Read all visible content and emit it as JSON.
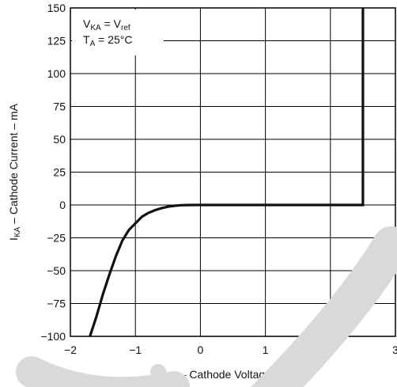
{
  "chart_data": {
    "type": "line",
    "title": "",
    "xlabel": {
      "main": "V",
      "sub": "KA",
      "rest": " – Cathode Voltage – V"
    },
    "ylabel": {
      "main": "I",
      "sub": "KA",
      "rest": " – Cathode Current – mA"
    },
    "xlim": [
      -2,
      3
    ],
    "ylim": [
      -100,
      150
    ],
    "x_ticks": [
      -2,
      -1,
      0,
      1,
      2,
      3
    ],
    "y_ticks": [
      150,
      125,
      100,
      75,
      50,
      25,
      0,
      -25,
      -50,
      -75,
      -100
    ],
    "grid": true,
    "annotations": [
      {
        "parts": [
          [
            "V",
            ""
          ],
          [
            "KA",
            "sub"
          ],
          [
            " = V",
            ""
          ],
          [
            "ref",
            "sub"
          ]
        ]
      },
      {
        "parts": [
          [
            "T",
            ""
          ],
          [
            "A",
            "sub"
          ],
          [
            " = 25°C",
            ""
          ]
        ]
      }
    ],
    "series": [
      {
        "x": [
          -1.7,
          -1.6,
          -1.5,
          -1.4,
          -1.3,
          -1.2,
          -1.1,
          -1.0,
          -0.9,
          -0.8,
          -0.7,
          -0.6,
          -0.5,
          -0.4,
          -0.3,
          -0.2,
          -0.1,
          0.0,
          1.0,
          2.0,
          2.5,
          2.5
        ],
        "y": [
          -100,
          -85,
          -68,
          -53,
          -39,
          -27,
          -19,
          -14,
          -9,
          -6,
          -4,
          -2.5,
          -1.3,
          -0.6,
          -0.2,
          -0.05,
          0,
          0,
          0,
          0,
          0,
          150
        ]
      }
    ]
  },
  "watermark": {
    "color": "#d9d9d9"
  }
}
